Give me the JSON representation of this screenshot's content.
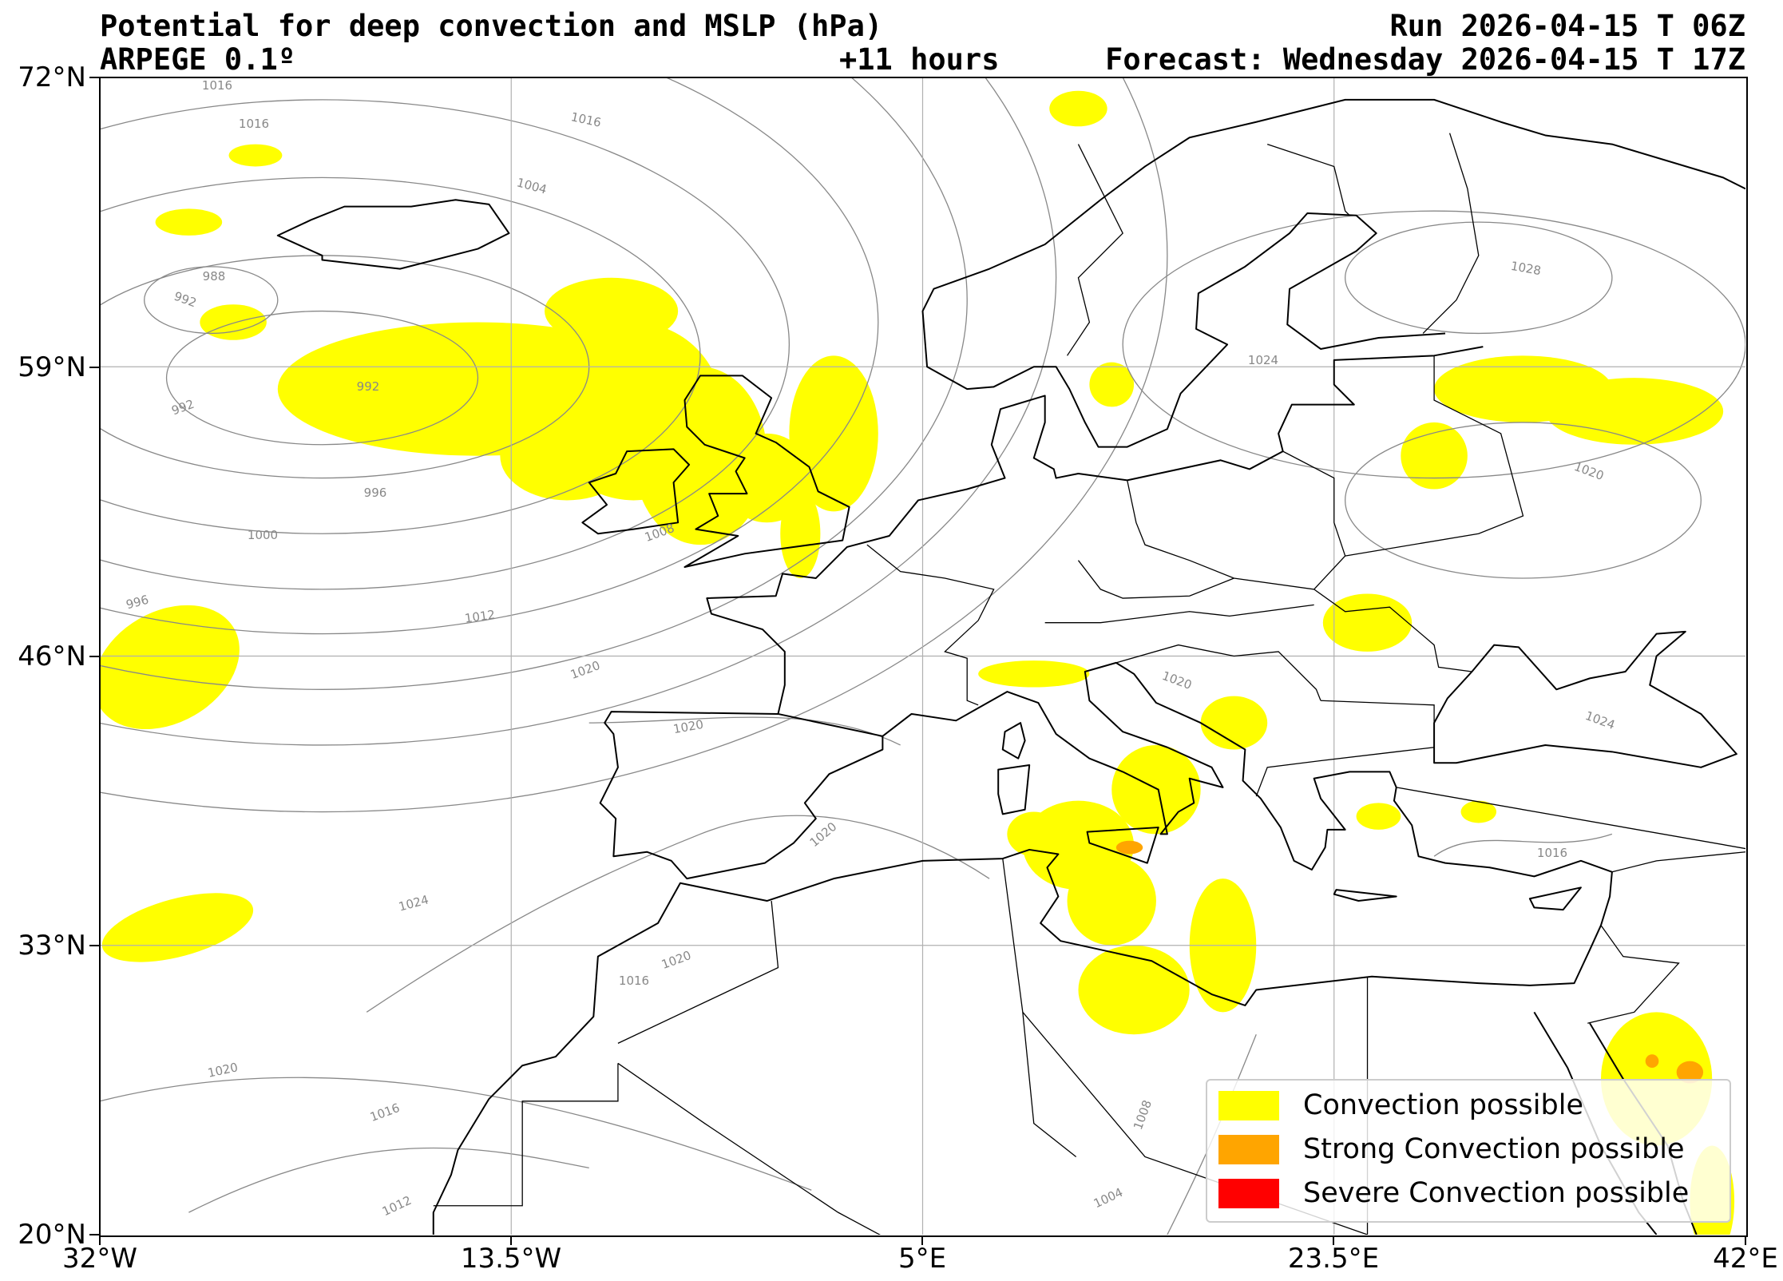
{
  "header": {
    "title": "Potential for deep convection and MSLP (hPa)",
    "run": "Run 2026-04-15 T 06Z",
    "model": "ARPEGE 0.1º",
    "lead": "+11 hours",
    "forecast": "Forecast: Wednesday 2026-04-15 T 17Z"
  },
  "axes": {
    "lat_labels": [
      "72°N",
      "59°N",
      "46°N",
      "33°N",
      "20°N"
    ],
    "lon_labels": [
      "32°W",
      "13.5°W",
      "5°E",
      "23.5°E",
      "42°E"
    ],
    "lat_range": [
      20,
      72
    ],
    "lon_range": [
      -32,
      42
    ]
  },
  "isobar_labels": [
    "1016",
    "1016",
    "1016",
    "1004",
    "988",
    "992",
    "992",
    "992",
    "996",
    "1000",
    "996",
    "1008",
    "1012",
    "1020",
    "1020",
    "1020",
    "1024",
    "1020",
    "1016",
    "1012",
    "1016",
    "1020",
    "1008",
    "1004",
    "1024",
    "1028",
    "1020",
    "1024",
    "1016",
    "1020"
  ],
  "legend": {
    "items": [
      {
        "label": "Convection possible",
        "color": "#ffff00"
      },
      {
        "label": "Strong Convection possible",
        "color": "#ffa500"
      },
      {
        "label": "Severe Convection possible",
        "color": "#ff0000"
      }
    ]
  },
  "colors": {
    "convection": "#ffff00",
    "strong": "#ffa500",
    "severe": "#ff0000",
    "isobar": "#888888",
    "coast": "#000000",
    "grid": "#b0b0b0"
  }
}
